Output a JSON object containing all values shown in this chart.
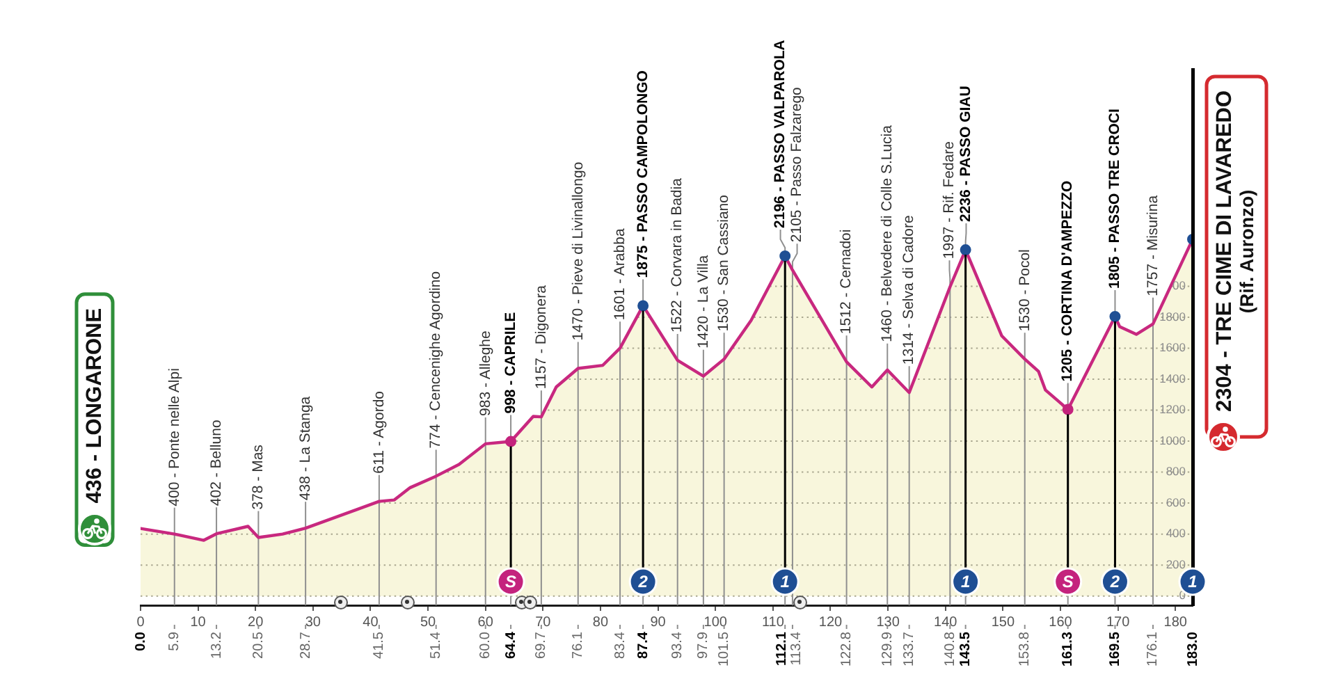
{
  "chart_data": {
    "type": "area",
    "x": [
      0,
      5.9,
      11.0,
      13.2,
      18.7,
      20.5,
      24.7,
      28.7,
      41.5,
      44.1,
      46.9,
      51.4,
      55.4,
      60.0,
      64.4,
      68.3,
      69.7,
      72.3,
      76.1,
      80.4,
      83.4,
      87.4,
      93.4,
      97.9,
      101.5,
      106.2,
      112.1,
      113.4,
      122.8,
      127.2,
      129.9,
      133.7,
      140.8,
      143.5,
      149.8,
      153.8,
      156.2,
      157.4,
      161.3,
      169.5,
      170.3,
      173.2,
      176.1,
      183.0
    ],
    "series": [
      {
        "color": "#c8287f",
        "values": [
          436,
          400,
          360,
          402,
          450,
          378,
          400,
          438,
          611,
          620,
          700,
          774,
          850,
          983,
          998,
          1160,
          1157,
          1350,
          1470,
          1490,
          1601,
          1875,
          1522,
          1420,
          1530,
          1780,
          2196,
          2105,
          1512,
          1350,
          1460,
          1314,
          1997,
          2236,
          1680,
          1530,
          1450,
          1330,
          1205,
          1805,
          1740,
          1690,
          1757,
          2304
        ]
      },
      {
        "type": "scatter",
        "marker": "circle",
        "x": [
          64.4,
          87.4,
          112.1,
          143.5,
          161.3,
          169.5,
          183.0
        ],
        "values": [
          998,
          1875,
          2196,
          2236,
          1205,
          1805,
          2304
        ],
        "colors": [
          "#c4237d",
          "#1f4f94",
          "#1f4f94",
          "#1f4f94",
          "#c4237d",
          "#1f4f94",
          "#1f4f94"
        ]
      }
    ],
    "xlim": [
      0,
      183
    ],
    "xticks": [
      0,
      10,
      20,
      30,
      40,
      50,
      60,
      70,
      80,
      90,
      100,
      110,
      120,
      130,
      140,
      150,
      160,
      170,
      180
    ],
    "x2lim": [
      0,
      183
    ],
    "x2ticks": [
      {
        "value": 0,
        "label": "0.0"
      },
      5.9,
      13.2,
      20.5,
      28.7,
      41.5,
      51.4,
      {
        "value": 60,
        "label": "60.0"
      },
      64.4,
      69.7,
      76.1,
      83.4,
      87.4,
      93.4,
      97.9,
      101.5,
      112.1,
      113.4,
      122.8,
      129.9,
      133.7,
      140.8,
      143.5,
      153.8,
      161.3,
      169.5,
      176.1,
      {
        "value": 183,
        "label": "183.0"
      }
    ],
    "ylim": [
      -60,
      3400
    ],
    "yticks": [
      0,
      200,
      400,
      600,
      800,
      1000,
      1200,
      1400,
      1600,
      1800,
      {
        "value": 2000,
        "label": "00"
      }
    ],
    "grid": "y",
    "annotations": [
      {
        "text": "436 - LONGARONE",
        "x": 0,
        "y": 436
      },
      {
        "text": "400 - Ponte nelle Alpi",
        "x": 5.9,
        "y": 400
      },
      {
        "text": "402 - Belluno",
        "x": 13.2,
        "y": 402
      },
      {
        "text": "378 - Mas",
        "x": 20.5,
        "y": 378
      },
      {
        "text": "438 - La Stanga",
        "x": 28.7,
        "y": 438
      },
      {
        "text": "611 - Agordo",
        "x": 41.5,
        "y": 611
      },
      {
        "text": "774 - Cencenighe Agordino",
        "x": 51.4,
        "y": 774
      },
      {
        "text": "983 - Alleghe",
        "x": 60,
        "y": 983
      },
      {
        "text": "998 - CAPRILE",
        "x": 64.4,
        "y": 998
      },
      {
        "text": "1157 - Digonera",
        "x": 69.7,
        "y": 1157
      },
      {
        "text": "1470 - Pieve di Livinallongo",
        "x": 76.1,
        "y": 1470
      },
      {
        "text": "1601 - Arabba",
        "x": 83.4,
        "y": 1601
      },
      {
        "text": "1875 - PASSO CAMPOLONGO",
        "x": 87.4,
        "y": 1875
      },
      {
        "text": "1522 - Corvara in Badia",
        "x": 93.4,
        "y": 1522
      },
      {
        "text": "1420 - La Villa",
        "x": 97.9,
        "y": 1420
      },
      {
        "text": "1530 - San Cassiano",
        "x": 101.5,
        "y": 1530
      },
      {
        "text": "2196 - PASSO VALPAROLA",
        "x": 112.1,
        "y": 2196
      },
      {
        "text": "2105 - Passo Falzarego",
        "x": 113.4,
        "y": 2105
      },
      {
        "text": "1512 - Cernadoi",
        "x": 122.8,
        "y": 1512
      },
      {
        "text": "1460 - Belvedere di Colle S.Lucia",
        "x": 129.9,
        "y": 1460
      },
      {
        "text": "1314 - Selva di Cadore",
        "x": 133.7,
        "y": 1314
      },
      {
        "text": "1997 - Rif. Fedare",
        "x": 140.8,
        "y": 1997
      },
      {
        "text": "2236 - PASSO GIAU",
        "x": 143.5,
        "y": 2236
      },
      {
        "text": "1530 - Pocol",
        "x": 153.8,
        "y": 1530
      },
      {
        "text": "1205 - CORTINA D'AMPEZZO",
        "x": 161.3,
        "y": 1205
      },
      {
        "text": "1805 - PASSO TRE CROCI",
        "x": 169.5,
        "y": 1805
      },
      {
        "text": "1757 - Misurina",
        "x": 176.1,
        "y": 1757
      },
      {
        "text": "2304 - TRE CIME DI LAVAREDO\n(Rif. Auronzo)",
        "x": 183,
        "y": 2304
      },
      {
        "text": "S",
        "x": 64.4
      },
      {
        "text": "2",
        "x": 87.4
      },
      {
        "text": "1",
        "x": 112.1
      },
      {
        "text": "1",
        "x": 143.5
      },
      {
        "text": "S",
        "x": 161.3
      },
      {
        "text": "2",
        "x": 169.5
      },
      {
        "text": "1",
        "x": 183
      }
    ]
  }
}
